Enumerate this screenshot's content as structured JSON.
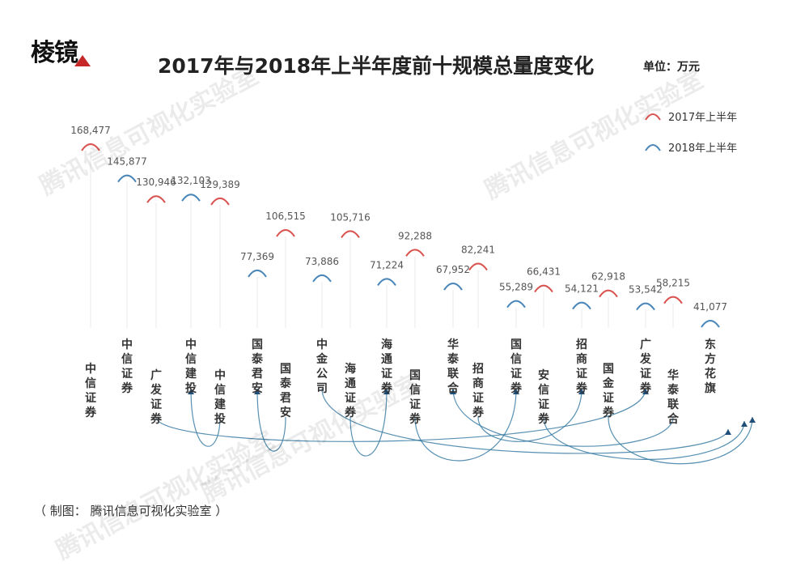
{
  "logo": "棱镜",
  "title": "2017年与2018年上半年度前十规模总量度变化",
  "unit": "单位：万元",
  "legend": [
    {
      "label": "2017年上半年",
      "color": "#d9534f"
    },
    {
      "label": "2018年上半年",
      "color": "#4a86b8"
    }
  ],
  "watermarks": [
    "腾讯信息可视化实验室",
    "腾讯信息可视化实验室",
    "腾讯信息可视化实验室",
    "腾讯信息可视化实验室"
  ],
  "credit": "（ 制图：  腾讯信息可视化实验室 ）",
  "chart_data": {
    "type": "bump",
    "series": [
      {
        "name": "2017年上半年",
        "color": "#d9534f",
        "categories": [
          "中信证券",
          "广发证券",
          "中信建投",
          "国泰君安",
          "海通证券",
          "国信证券",
          "招商证券",
          "安信证券",
          "国金证券",
          "华泰联合"
        ],
        "values": [
          168477,
          130946,
          129389,
          106515,
          105716,
          92288,
          82241,
          66431,
          62918,
          58215
        ]
      },
      {
        "name": "2018年上半年",
        "color": "#4a86b8",
        "categories": [
          "中信证券",
          "中信建投",
          "国泰君安",
          "中金公司",
          "海通证券",
          "华泰联合",
          "国信证券",
          "招商证券",
          "广发证券",
          "东方花旗"
        ],
        "values": [
          145877,
          132103,
          77369,
          73886,
          71224,
          67952,
          55289,
          54121,
          53542,
          41077
        ]
      }
    ],
    "labels_2017": [
      "168,477",
      "130,946",
      "129,389",
      "106,515",
      "105,716",
      "92,288",
      "82,241",
      "66,431",
      "62,918",
      "58,215"
    ],
    "labels_2018": [
      "145,877",
      "132,103",
      "77,369",
      "73,886",
      "71,224",
      "67,952",
      "55,289",
      "54,121",
      "53,542",
      "41,077"
    ]
  }
}
